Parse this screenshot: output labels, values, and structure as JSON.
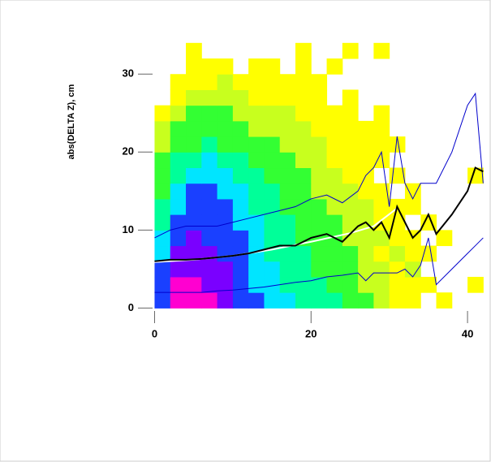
{
  "chart_data": {
    "type": "heatmap",
    "ylabel": "abs(DELTA Z), cm",
    "xlim": [
      -1.5,
      43
    ],
    "ylim": [
      -1,
      39.5
    ],
    "xticks": [
      0,
      20,
      40
    ],
    "yticks": [
      0,
      10,
      20,
      30
    ],
    "xbins": [
      0,
      2,
      4,
      6,
      8,
      10,
      12,
      14,
      16,
      18,
      20,
      22,
      24,
      26,
      28,
      30,
      32,
      34,
      36,
      38,
      40,
      42
    ],
    "ybins": [
      0,
      2,
      4,
      6,
      8,
      10,
      12,
      14,
      16,
      18,
      20,
      22,
      24,
      26,
      28,
      30,
      32,
      34
    ],
    "colors": [
      "#ffff00",
      "#c8ff1e",
      "#33ff33",
      "#00ff99",
      "#00e5ff",
      "#1a40ff",
      "#7a00ff",
      "#ff00d0"
    ],
    "z": [
      [
        6,
        8,
        8,
        8,
        7,
        6,
        6,
        5,
        5,
        4,
        4,
        4,
        3,
        3,
        2,
        1,
        1,
        0,
        1,
        0,
        0
      ],
      [
        6,
        8,
        8,
        7,
        7,
        6,
        5,
        5,
        4,
        4,
        4,
        3,
        3,
        2,
        2,
        1,
        1,
        1,
        0,
        0,
        1
      ],
      [
        6,
        7,
        7,
        7,
        7,
        6,
        5,
        5,
        4,
        4,
        3,
        3,
        3,
        2,
        2,
        1,
        2,
        0,
        0,
        0,
        0
      ],
      [
        5,
        7,
        7,
        7,
        6,
        6,
        5,
        4,
        4,
        4,
        3,
        3,
        3,
        2,
        1,
        2,
        1,
        1,
        0,
        0,
        0
      ],
      [
        5,
        6,
        7,
        6,
        6,
        6,
        5,
        4,
        4,
        3,
        3,
        3,
        2,
        2,
        2,
        1,
        1,
        0,
        1,
        0,
        0
      ],
      [
        4,
        6,
        6,
        6,
        6,
        5,
        5,
        4,
        4,
        3,
        3,
        3,
        2,
        2,
        1,
        1,
        0,
        1,
        0,
        0,
        0
      ],
      [
        4,
        5,
        6,
        6,
        6,
        5,
        4,
        4,
        3,
        3,
        3,
        2,
        2,
        2,
        1,
        1,
        1,
        0,
        0,
        0,
        0
      ],
      [
        3,
        5,
        6,
        6,
        5,
        5,
        4,
        4,
        3,
        3,
        2,
        2,
        2,
        1,
        1,
        0,
        1,
        0,
        0,
        0,
        0
      ],
      [
        3,
        4,
        5,
        5,
        5,
        4,
        4,
        3,
        3,
        3,
        2,
        2,
        1,
        1,
        0,
        1,
        0,
        0,
        0,
        0,
        1
      ],
      [
        3,
        4,
        4,
        5,
        4,
        4,
        3,
        3,
        3,
        2,
        2,
        1,
        1,
        1,
        1,
        0,
        0,
        0,
        0,
        0,
        0
      ],
      [
        2,
        3,
        3,
        4,
        3,
        3,
        3,
        3,
        2,
        2,
        2,
        1,
        1,
        1,
        1,
        1,
        0,
        0,
        0,
        0,
        0
      ],
      [
        2,
        3,
        3,
        3,
        3,
        3,
        2,
        2,
        2,
        2,
        1,
        1,
        1,
        1,
        1,
        0,
        0,
        0,
        0,
        0,
        0
      ],
      [
        1,
        2,
        3,
        3,
        3,
        2,
        2,
        2,
        2,
        1,
        1,
        1,
        1,
        0,
        1,
        0,
        0,
        0,
        0,
        0,
        0
      ],
      [
        0,
        1,
        2,
        2,
        2,
        2,
        1,
        1,
        1,
        1,
        1,
        0,
        1,
        0,
        0,
        0,
        0,
        0,
        0,
        0,
        0
      ],
      [
        0,
        1,
        1,
        1,
        2,
        1,
        1,
        1,
        1,
        1,
        1,
        0,
        0,
        0,
        0,
        0,
        0,
        0,
        0,
        0,
        0
      ],
      [
        0,
        0,
        1,
        1,
        1,
        0,
        1,
        1,
        0,
        1,
        0,
        1,
        0,
        0,
        0,
        0,
        0,
        0,
        0,
        0,
        0
      ],
      [
        0,
        0,
        1,
        0,
        0,
        0,
        0,
        0,
        0,
        1,
        0,
        0,
        1,
        0,
        1,
        0,
        0,
        0,
        0,
        0,
        0
      ]
    ],
    "lines": [
      {
        "color": "#0000cc",
        "width": 1,
        "x": [
          0,
          2,
          4,
          6,
          8,
          10,
          12,
          14,
          16,
          18,
          20,
          22,
          24,
          26,
          27,
          28,
          29,
          30,
          31,
          32,
          33,
          34,
          35,
          36,
          38,
          40,
          41,
          42
        ],
        "values": [
          9,
          10,
          10.5,
          10.5,
          10.5,
          11,
          11.5,
          12,
          12.5,
          13,
          14,
          14.5,
          13.5,
          15,
          17,
          18,
          20,
          13,
          22,
          16,
          14,
          16,
          16,
          16,
          20,
          26,
          27.5,
          16
        ]
      },
      {
        "color": "#0000cc",
        "width": 1,
        "x": [
          0,
          2,
          4,
          6,
          8,
          10,
          12,
          14,
          16,
          18,
          20,
          22,
          24,
          26,
          27,
          28,
          29,
          30,
          31,
          32,
          33,
          34,
          35,
          36,
          38,
          40,
          41,
          42
        ],
        "values": [
          2,
          2,
          2,
          2,
          2.2,
          2.3,
          2.5,
          2.7,
          3,
          3.3,
          3.5,
          4,
          4.2,
          4.5,
          3.5,
          4.5,
          4.5,
          4.5,
          4.5,
          5,
          4,
          5.5,
          9,
          3,
          5,
          7,
          8,
          9
        ]
      },
      {
        "color": "#ffffff",
        "width": 2,
        "x": [
          0,
          5,
          10,
          15,
          20,
          25,
          28,
          31
        ],
        "values": [
          5.9,
          6.2,
          6.7,
          7.5,
          8.5,
          9.6,
          10.5,
          12.8
        ]
      },
      {
        "color": "#000000",
        "width": 2,
        "x": [
          0,
          2,
          4,
          6,
          8,
          10,
          12,
          14,
          16,
          18,
          20,
          22,
          24,
          26,
          27,
          28,
          29,
          30,
          31,
          32,
          33,
          34,
          35,
          36,
          38,
          40,
          41,
          42
        ],
        "values": [
          6,
          6.2,
          6.2,
          6.3,
          6.5,
          6.7,
          7,
          7.5,
          8,
          8,
          9,
          9.5,
          8.5,
          10.5,
          11,
          10,
          11,
          9,
          13,
          11,
          9,
          10,
          12,
          9.5,
          12,
          15,
          18,
          17.5
        ]
      }
    ]
  }
}
